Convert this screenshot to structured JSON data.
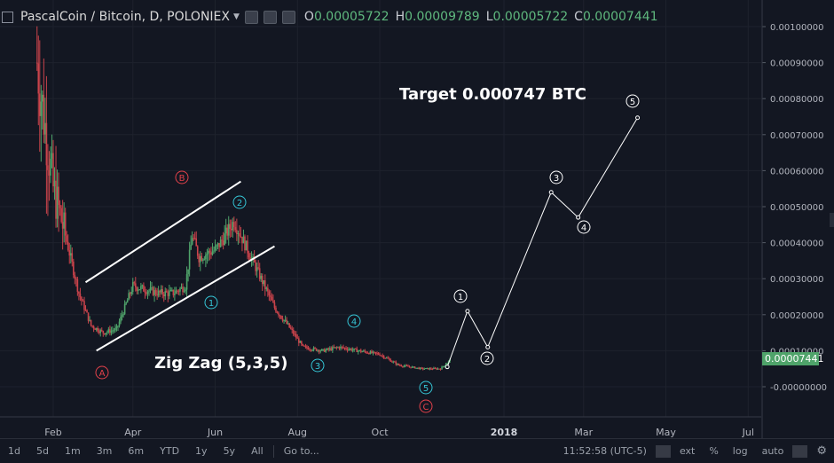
{
  "header": {
    "symbol": "PascalCoin / Bitcoin, D, POLONIEX",
    "ohlc": [
      {
        "label": "O",
        "value": "0.00005722"
      },
      {
        "label": "H",
        "value": "0.00009789"
      },
      {
        "label": "L",
        "value": "0.00005722"
      },
      {
        "label": "C",
        "value": "0.00007441"
      }
    ]
  },
  "price_tag": "0.00007441",
  "annotations": {
    "target": "Target 0.000747 BTC",
    "zigzag": "Zig Zag (5,3,5)",
    "wave_labels": [
      "A",
      "B",
      "C",
      "1",
      "2",
      "3",
      "4",
      "5"
    ]
  },
  "bottom_bar": {
    "timeframes": [
      "1d",
      "5d",
      "1m",
      "3m",
      "6m",
      "YTD",
      "1y",
      "5y",
      "All"
    ],
    "goto": "Go to...",
    "clock": "11:52:58 (UTC-5)",
    "options": [
      "ext",
      "%",
      "log",
      "auto"
    ]
  },
  "colors": {
    "background": "#131722",
    "up": "#4fa36a",
    "down": "#c9434b",
    "price_tag": "#4fa36a",
    "wave_red": "#e3414a",
    "wave_cyan": "#35c6d6",
    "projection": "#ffffff"
  },
  "chart_data": {
    "type": "candlestick",
    "x_ticks": [
      "Feb",
      "Apr",
      "Jun",
      "Aug",
      "Oct",
      "2018",
      "Mar",
      "May",
      "Jul"
    ],
    "y_ticks": [
      "0.00100000",
      "0.00090000",
      "0.00080000",
      "0.00070000",
      "0.00060000",
      "0.00050000",
      "0.00040000",
      "0.00030000",
      "0.00020000",
      "0.00010000",
      "-0.00000000"
    ],
    "ylim": [
      -8e-05,
      0.00105
    ],
    "price_series_dates": [
      "2017-01-20",
      "2017-01-25",
      "2017-02-01",
      "2017-02-10",
      "2017-02-20",
      "2017-03-01",
      "2017-03-10",
      "2017-03-20",
      "2017-04-01",
      "2017-04-10",
      "2017-04-20",
      "2017-05-01",
      "2017-05-10",
      "2017-05-15",
      "2017-05-20",
      "2017-06-01",
      "2017-06-05",
      "2017-06-15",
      "2017-06-25",
      "2017-07-05",
      "2017-07-15",
      "2017-07-25",
      "2017-08-05",
      "2017-08-20",
      "2017-09-01",
      "2017-09-15",
      "2017-10-01",
      "2017-10-15",
      "2017-11-01",
      "2017-11-15",
      "2017-11-22"
    ],
    "price_series": [
      0.0009,
      0.00075,
      0.00055,
      0.00042,
      0.00026,
      0.00017,
      0.00015,
      0.00016,
      0.00028,
      0.00027,
      0.00026,
      0.00026,
      0.00028,
      0.00042,
      0.00036,
      0.00038,
      0.0004,
      0.00046,
      0.00038,
      0.0003,
      0.00022,
      0.00017,
      0.00011,
      0.0001,
      0.00011,
      0.0001,
      9e-05,
      6e-05,
      5e-05,
      5e-05,
      7.4e-05
    ],
    "channel": {
      "upper": [
        [
          "2017-02-25",
          0.00029
        ],
        [
          "2017-06-20",
          0.00057
        ]
      ],
      "lower": [
        [
          "2017-03-05",
          0.0001
        ],
        [
          "2017-07-15",
          0.00039
        ]
      ]
    },
    "projection": [
      {
        "label": "5",
        "date": "2017-11-20",
        "value": 5.5e-05
      },
      {
        "label": "1",
        "date": "2017-12-05",
        "value": 0.00021
      },
      {
        "label": "2",
        "date": "2017-12-20",
        "value": 0.00011
      },
      {
        "label": "3",
        "date": "2018-02-05",
        "value": 0.00054
      },
      {
        "label": "4",
        "date": "2018-02-25",
        "value": 0.00047
      },
      {
        "label": "5",
        "date": "2018-04-10",
        "value": 0.000747
      }
    ]
  }
}
